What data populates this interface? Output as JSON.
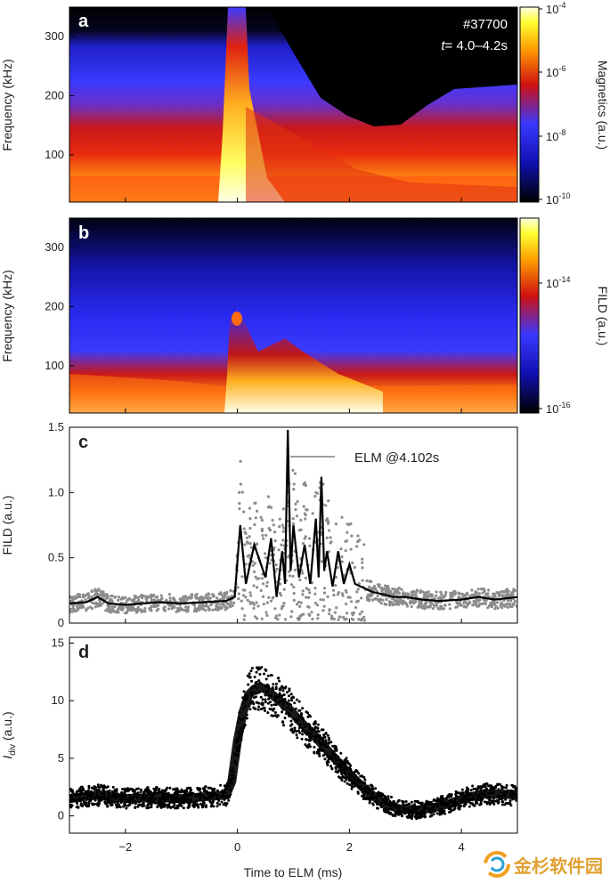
{
  "chart_data": [
    {
      "panel": "a",
      "type": "heatmap",
      "annotation_shot": "#37700",
      "annotation_time": "= 4.0–4.2s",
      "annotation_time_var": "t",
      "ylabel": "Frequency (kHz)",
      "ylim": [
        20,
        350
      ],
      "yticks": [
        100,
        200,
        300
      ],
      "xlim": [
        -3,
        5
      ],
      "colorbar_label": "Magnetics (a.u.)",
      "colorbar_ticks": [
        {
          "base": "10",
          "exp": "-4"
        },
        {
          "base": "10",
          "exp": "-6"
        },
        {
          "base": "10",
          "exp": "-8"
        },
        {
          "base": "10",
          "exp": "-10"
        }
      ],
      "colormap": "black-blue-red-yellow-white"
    },
    {
      "panel": "b",
      "type": "heatmap",
      "ylabel": "Frequency (kHz)",
      "ylim": [
        20,
        350
      ],
      "yticks": [
        100,
        200,
        300
      ],
      "xlim": [
        -3,
        5
      ],
      "colorbar_label": "FILD (a.u.)",
      "colorbar_ticks": [
        {
          "base": "10",
          "exp": "-14"
        },
        {
          "base": "10",
          "exp": "-16"
        }
      ],
      "colormap": "black-blue-red-yellow-white"
    },
    {
      "panel": "c",
      "type": "scatter",
      "ylabel": "FILD (a.u.)",
      "ylim": [
        0,
        1.5
      ],
      "yticks": [
        0,
        0.5,
        1.0,
        1.5
      ],
      "xlim": [
        -3,
        5
      ],
      "annotation": "ELM @4.102s",
      "series": [
        {
          "kind": "raw samples",
          "color": "#8c8c8c"
        },
        {
          "kind": "smoothed",
          "color": "#000000",
          "x": [
            -3.0,
            -2.7,
            -2.5,
            -2.3,
            -2.0,
            -1.7,
            -1.4,
            -1.0,
            -0.6,
            -0.2,
            -0.05,
            0.05,
            0.15,
            0.3,
            0.5,
            0.6,
            0.7,
            0.8,
            0.85,
            0.9,
            0.95,
            1.0,
            1.1,
            1.2,
            1.3,
            1.4,
            1.45,
            1.5,
            1.55,
            1.6,
            1.7,
            1.8,
            1.9,
            2.0,
            2.1,
            2.2,
            2.4,
            2.6,
            2.8,
            3.0,
            3.3,
            3.6,
            4.0,
            4.3,
            4.6,
            5.0
          ],
          "y": [
            0.15,
            0.16,
            0.2,
            0.15,
            0.14,
            0.15,
            0.16,
            0.15,
            0.16,
            0.17,
            0.2,
            0.75,
            0.3,
            0.6,
            0.35,
            0.65,
            0.2,
            0.55,
            0.3,
            1.48,
            0.4,
            0.75,
            0.35,
            0.6,
            0.3,
            0.8,
            0.35,
            1.12,
            0.4,
            0.55,
            0.28,
            0.55,
            0.3,
            0.45,
            0.3,
            0.28,
            0.24,
            0.22,
            0.2,
            0.2,
            0.18,
            0.17,
            0.18,
            0.2,
            0.18,
            0.2
          ]
        }
      ]
    },
    {
      "panel": "d",
      "type": "scatter",
      "ylabel": "I",
      "ylabel_sub": "div",
      "ylabel_unit": " (a.u.)",
      "xlabel": "Time to ELM (ms)",
      "ylim": [
        -1.5,
        15.5
      ],
      "yticks": [
        0,
        5,
        10,
        15
      ],
      "xlim": [
        -3,
        5
      ],
      "xticks": [
        -2,
        0,
        2,
        4
      ],
      "color": "#000000",
      "x": [
        -3.0,
        -2.5,
        -2.0,
        -1.5,
        -1.0,
        -0.5,
        -0.2,
        -0.1,
        0.0,
        0.1,
        0.2,
        0.3,
        0.4,
        0.5,
        0.7,
        0.9,
        1.1,
        1.4,
        1.7,
        2.0,
        2.3,
        2.6,
        2.9,
        3.2,
        3.5,
        3.8,
        4.1,
        4.4,
        4.7,
        5.0
      ],
      "y": [
        1.5,
        1.8,
        1.5,
        1.6,
        1.5,
        1.7,
        1.8,
        3.0,
        6.5,
        9.0,
        10.5,
        11.0,
        11.2,
        11.0,
        10.2,
        9.4,
        8.3,
        6.8,
        5.2,
        3.6,
        2.2,
        1.1,
        0.6,
        0.5,
        0.7,
        1.1,
        1.6,
        1.9,
        1.9,
        1.8
      ]
    }
  ],
  "watermark": {
    "text": "金杉软件园"
  }
}
